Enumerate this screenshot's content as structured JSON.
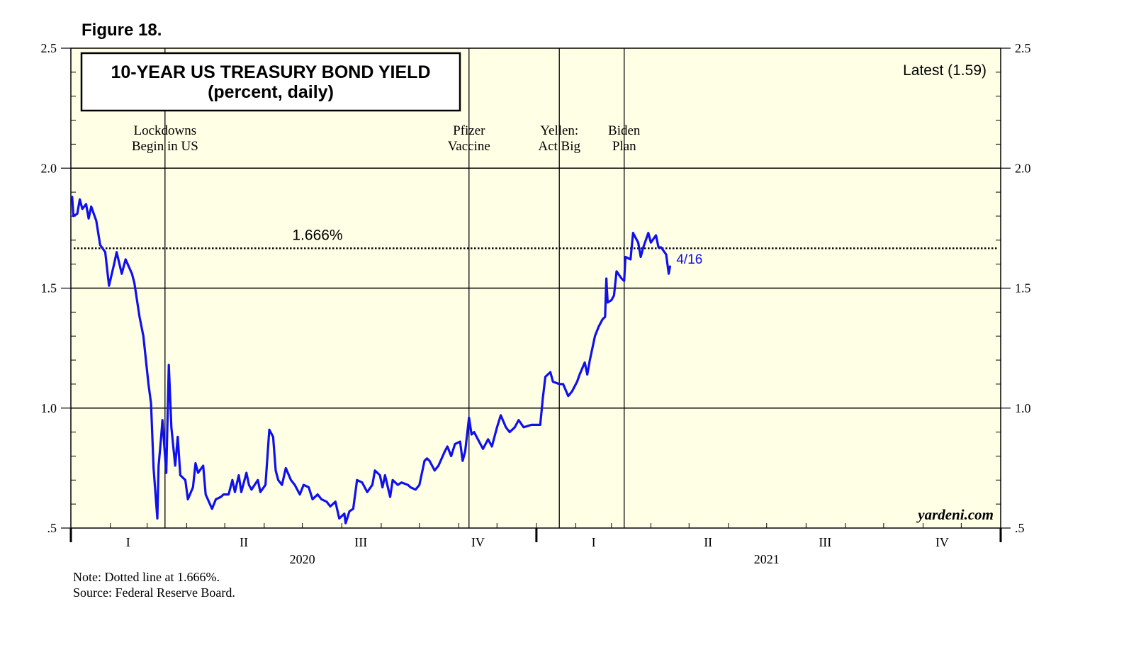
{
  "figure_label": "Figure 18.",
  "chart_data": {
    "type": "line",
    "title": "10-YEAR US TREASURY BOND YIELD",
    "subtitle": "(percent, daily)",
    "ylim": [
      0.5,
      2.5
    ],
    "y_ticks": [
      "2.5",
      "2.0",
      "1.5",
      "1.0",
      ".5"
    ],
    "grid": true,
    "x_quarters": [
      "I",
      "II",
      "III",
      "IV",
      "I",
      "II",
      "III",
      "IV"
    ],
    "x_years": [
      "2020",
      "2021"
    ],
    "xlim": [
      "2020-01-01",
      "2021-12-31"
    ],
    "latest_label": "Latest (1.59)",
    "end_label": "4/16",
    "reference_line": {
      "value": 1.666,
      "label": "1.666%"
    },
    "events": [
      {
        "date": "2020-03-15",
        "line1": "Lockdowns",
        "line2": "Begin in US"
      },
      {
        "date": "2020-11-09",
        "line1": "Pfizer",
        "line2": "Vaccine"
      },
      {
        "date": "2021-01-19",
        "line1": "Yellen:",
        "line2": "Act Big"
      },
      {
        "date": "2021-03-11",
        "line1": "Biden",
        "line2": "Plan"
      }
    ],
    "watermark": "yardeni.com",
    "series": [
      {
        "color": "#1010ee",
        "points": [
          [
            "2020-01-02",
            1.88
          ],
          [
            "2020-01-03",
            1.8
          ],
          [
            "2020-01-06",
            1.81
          ],
          [
            "2020-01-08",
            1.87
          ],
          [
            "2020-01-10",
            1.83
          ],
          [
            "2020-01-13",
            1.85
          ],
          [
            "2020-01-15",
            1.79
          ],
          [
            "2020-01-17",
            1.84
          ],
          [
            "2020-01-21",
            1.78
          ],
          [
            "2020-01-24",
            1.68
          ],
          [
            "2020-01-28",
            1.65
          ],
          [
            "2020-01-31",
            1.51
          ],
          [
            "2020-02-04",
            1.6
          ],
          [
            "2020-02-06",
            1.65
          ],
          [
            "2020-02-10",
            1.56
          ],
          [
            "2020-02-13",
            1.62
          ],
          [
            "2020-02-18",
            1.56
          ],
          [
            "2020-02-20",
            1.52
          ],
          [
            "2020-02-24",
            1.38
          ],
          [
            "2020-02-27",
            1.3
          ],
          [
            "2020-03-02",
            1.1
          ],
          [
            "2020-03-04",
            1.02
          ],
          [
            "2020-03-06",
            0.75
          ],
          [
            "2020-03-09",
            0.54
          ],
          [
            "2020-03-10",
            0.76
          ],
          [
            "2020-03-12",
            0.88
          ],
          [
            "2020-03-13",
            0.95
          ],
          [
            "2020-03-16",
            0.73
          ],
          [
            "2020-03-18",
            1.18
          ],
          [
            "2020-03-20",
            0.92
          ],
          [
            "2020-03-23",
            0.76
          ],
          [
            "2020-03-25",
            0.88
          ],
          [
            "2020-03-27",
            0.72
          ],
          [
            "2020-03-31",
            0.7
          ],
          [
            "2020-04-02",
            0.62
          ],
          [
            "2020-04-06",
            0.67
          ],
          [
            "2020-04-08",
            0.77
          ],
          [
            "2020-04-10",
            0.73
          ],
          [
            "2020-04-14",
            0.76
          ],
          [
            "2020-04-16",
            0.64
          ],
          [
            "2020-04-21",
            0.58
          ],
          [
            "2020-04-24",
            0.62
          ],
          [
            "2020-04-28",
            0.63
          ],
          [
            "2020-04-30",
            0.64
          ],
          [
            "2020-05-04",
            0.64
          ],
          [
            "2020-05-07",
            0.7
          ],
          [
            "2020-05-09",
            0.65
          ],
          [
            "2020-05-12",
            0.72
          ],
          [
            "2020-05-14",
            0.65
          ],
          [
            "2020-05-18",
            0.73
          ],
          [
            "2020-05-20",
            0.68
          ],
          [
            "2020-05-22",
            0.66
          ],
          [
            "2020-05-27",
            0.7
          ],
          [
            "2020-05-29",
            0.65
          ],
          [
            "2020-06-02",
            0.68
          ],
          [
            "2020-06-05",
            0.91
          ],
          [
            "2020-06-08",
            0.88
          ],
          [
            "2020-06-10",
            0.74
          ],
          [
            "2020-06-12",
            0.7
          ],
          [
            "2020-06-15",
            0.68
          ],
          [
            "2020-06-18",
            0.75
          ],
          [
            "2020-06-22",
            0.7
          ],
          [
            "2020-06-25",
            0.68
          ],
          [
            "2020-06-29",
            0.64
          ],
          [
            "2020-07-02",
            0.68
          ],
          [
            "2020-07-06",
            0.67
          ],
          [
            "2020-07-09",
            0.62
          ],
          [
            "2020-07-13",
            0.64
          ],
          [
            "2020-07-16",
            0.62
          ],
          [
            "2020-07-20",
            0.61
          ],
          [
            "2020-07-23",
            0.59
          ],
          [
            "2020-07-27",
            0.61
          ],
          [
            "2020-07-30",
            0.54
          ],
          [
            "2020-08-03",
            0.56
          ],
          [
            "2020-08-04",
            0.52
          ],
          [
            "2020-08-07",
            0.57
          ],
          [
            "2020-08-10",
            0.58
          ],
          [
            "2020-08-13",
            0.7
          ],
          [
            "2020-08-17",
            0.69
          ],
          [
            "2020-08-21",
            0.65
          ],
          [
            "2020-08-25",
            0.68
          ],
          [
            "2020-08-27",
            0.74
          ],
          [
            "2020-08-31",
            0.72
          ],
          [
            "2020-09-02",
            0.67
          ],
          [
            "2020-09-04",
            0.72
          ],
          [
            "2020-09-08",
            0.63
          ],
          [
            "2020-09-10",
            0.7
          ],
          [
            "2020-09-14",
            0.68
          ],
          [
            "2020-09-17",
            0.69
          ],
          [
            "2020-09-22",
            0.68
          ],
          [
            "2020-09-24",
            0.67
          ],
          [
            "2020-09-28",
            0.66
          ],
          [
            "2020-10-01",
            0.68
          ],
          [
            "2020-10-05",
            0.78
          ],
          [
            "2020-10-07",
            0.79
          ],
          [
            "2020-10-09",
            0.78
          ],
          [
            "2020-10-13",
            0.74
          ],
          [
            "2020-10-16",
            0.76
          ],
          [
            "2020-10-21",
            0.82
          ],
          [
            "2020-10-23",
            0.84
          ],
          [
            "2020-10-26",
            0.8
          ],
          [
            "2020-10-29",
            0.85
          ],
          [
            "2020-11-02",
            0.86
          ],
          [
            "2020-11-04",
            0.78
          ],
          [
            "2020-11-06",
            0.82
          ],
          [
            "2020-11-09",
            0.96
          ],
          [
            "2020-11-11",
            0.89
          ],
          [
            "2020-11-13",
            0.9
          ],
          [
            "2020-11-17",
            0.86
          ],
          [
            "2020-11-20",
            0.83
          ],
          [
            "2020-11-24",
            0.87
          ],
          [
            "2020-11-27",
            0.84
          ],
          [
            "2020-12-01",
            0.92
          ],
          [
            "2020-12-04",
            0.97
          ],
          [
            "2020-12-08",
            0.92
          ],
          [
            "2020-12-11",
            0.9
          ],
          [
            "2020-12-15",
            0.92
          ],
          [
            "2020-12-18",
            0.95
          ],
          [
            "2020-12-22",
            0.92
          ],
          [
            "2020-12-28",
            0.93
          ],
          [
            "2020-12-31",
            0.93
          ],
          [
            "2021-01-04",
            0.93
          ],
          [
            "2021-01-06",
            1.04
          ],
          [
            "2021-01-08",
            1.13
          ],
          [
            "2021-01-12",
            1.15
          ],
          [
            "2021-01-14",
            1.11
          ],
          [
            "2021-01-19",
            1.1
          ],
          [
            "2021-01-22",
            1.1
          ],
          [
            "2021-01-26",
            1.05
          ],
          [
            "2021-01-29",
            1.07
          ],
          [
            "2021-02-02",
            1.11
          ],
          [
            "2021-02-04",
            1.14
          ],
          [
            "2021-02-08",
            1.19
          ],
          [
            "2021-02-10",
            1.14
          ],
          [
            "2021-02-12",
            1.2
          ],
          [
            "2021-02-16",
            1.3
          ],
          [
            "2021-02-19",
            1.34
          ],
          [
            "2021-02-22",
            1.37
          ],
          [
            "2021-02-24",
            1.38
          ],
          [
            "2021-02-25",
            1.54
          ],
          [
            "2021-02-26",
            1.44
          ],
          [
            "2021-03-01",
            1.45
          ],
          [
            "2021-03-03",
            1.47
          ],
          [
            "2021-03-05",
            1.57
          ],
          [
            "2021-03-09",
            1.54
          ],
          [
            "2021-03-11",
            1.53
          ],
          [
            "2021-03-12",
            1.63
          ],
          [
            "2021-03-16",
            1.62
          ],
          [
            "2021-03-18",
            1.73
          ],
          [
            "2021-03-22",
            1.69
          ],
          [
            "2021-03-24",
            1.63
          ],
          [
            "2021-03-26",
            1.67
          ],
          [
            "2021-03-30",
            1.73
          ],
          [
            "2021-04-01",
            1.69
          ],
          [
            "2021-04-05",
            1.72
          ],
          [
            "2021-04-07",
            1.67
          ],
          [
            "2021-04-09",
            1.67
          ],
          [
            "2021-04-13",
            1.64
          ],
          [
            "2021-04-15",
            1.56
          ],
          [
            "2021-04-16",
            1.59
          ]
        ]
      }
    ]
  },
  "notes": {
    "line1": "Note: Dotted line at 1.666%.",
    "line2": "Source: Federal Reserve Board."
  }
}
